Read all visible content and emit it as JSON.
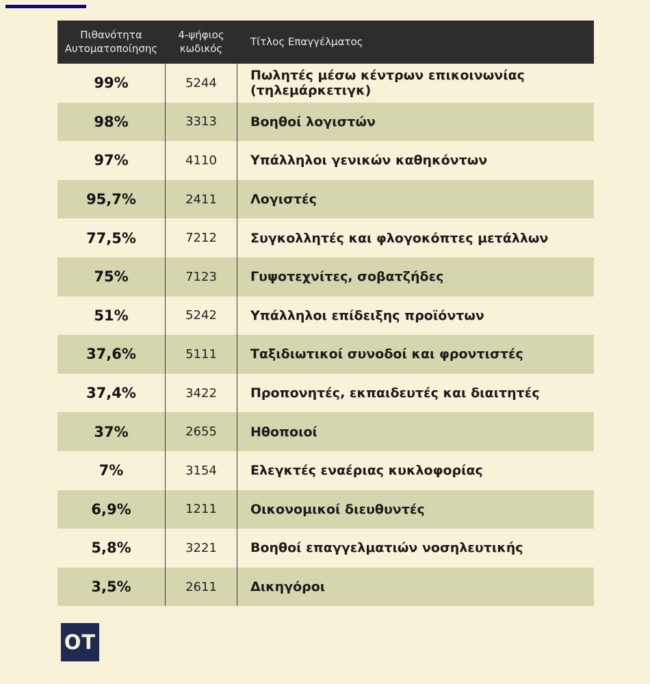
{
  "page": {
    "background_color": "#f8f2d8",
    "accent_line_color": "#0a0a73"
  },
  "logo": {
    "text": "OT",
    "background_color": "#1f2a52",
    "text_color": "#f6f0d6"
  },
  "table": {
    "header_background": "#2d2d2d",
    "header_text_color": "#e8e8e8",
    "alt_row_color": "#d5d5ae",
    "divider_color": "#3a3a3a"
  },
  "chart_data": {
    "type": "table",
    "columns": [
      "Πιθανότητα Αυτοματοποίησης",
      "4-ψήφιος κωδικός",
      "Τίτλος Επαγγέλματος"
    ],
    "rows": [
      [
        "99%",
        "5244",
        "Πωλητές μέσω κέντρων επικοινωνίας (τηλεμάρκετιγκ)"
      ],
      [
        "98%",
        "3313",
        "Βοηθοί λογιστών"
      ],
      [
        "97%",
        "4110",
        "Υπάλληλοι γενικών καθηκόντων"
      ],
      [
        "95,7%",
        "2411",
        "Λογιστές"
      ],
      [
        "77,5%",
        "7212",
        "Συγκολλητές και φλογοκόπτες μετάλλων"
      ],
      [
        "75%",
        "7123",
        "Γυψοτεχνίτες, σοβατζήδες"
      ],
      [
        "51%",
        "5242",
        "Υπάλληλοι επίδειξης προϊόντων"
      ],
      [
        "37,6%",
        "5111",
        "Ταξιδιωτικοί συνοδοί και φροντιστές"
      ],
      [
        "37,4%",
        "3422",
        "Προπονητές, εκπαιδευτές και διαιτητές"
      ],
      [
        "37%",
        "2655",
        "Ηθοποιοί"
      ],
      [
        "7%",
        "3154",
        "Ελεγκτές εναέριας κυκλοφορίας"
      ],
      [
        "6,9%",
        "1211",
        "Οικονομικοί διευθυντές"
      ],
      [
        "5,8%",
        "3221",
        "Βοηθοί επαγγελματιών νοσηλευτικής"
      ],
      [
        "3,5%",
        "2611",
        "Δικηγόροι"
      ]
    ]
  }
}
